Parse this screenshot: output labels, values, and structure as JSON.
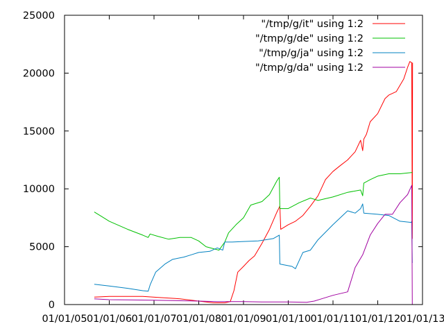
{
  "chart_data": {
    "type": "line",
    "title": "",
    "xlabel": "",
    "ylabel": "",
    "x_type": "date",
    "x_format": "dd/mm/yy",
    "xlim": [
      "2005-01-01",
      "2013-01-01"
    ],
    "ylim": [
      0,
      25000
    ],
    "x_ticks": [
      "01/01/05",
      "01/01/06",
      "01/01/07",
      "01/01/08",
      "01/01/09",
      "01/01/10",
      "01/01/11",
      "01/01/12",
      "01/01/13"
    ],
    "y_ticks": [
      0,
      5000,
      10000,
      15000,
      20000,
      25000
    ],
    "grid": false,
    "legend_position": "top-right",
    "series": [
      {
        "name": "\"/tmp/g/it\" using 1:2",
        "color": "#ff0000",
        "points": [
          [
            "2005-09-01",
            650
          ],
          [
            "2006-01-01",
            700
          ],
          [
            "2006-06-01",
            700
          ],
          [
            "2006-10-01",
            700
          ],
          [
            "2007-03-01",
            600
          ],
          [
            "2007-08-01",
            500
          ],
          [
            "2008-01-01",
            300
          ],
          [
            "2008-05-01",
            150
          ],
          [
            "2008-08-01",
            150
          ],
          [
            "2008-09-15",
            250
          ],
          [
            "2008-10-15",
            1200
          ],
          [
            "2008-11-15",
            2800
          ],
          [
            "2009-01-01",
            3300
          ],
          [
            "2009-02-15",
            3800
          ],
          [
            "2009-04-01",
            4200
          ],
          [
            "2009-06-01",
            5300
          ],
          [
            "2009-08-01",
            6500
          ],
          [
            "2009-10-01",
            8000
          ],
          [
            "2009-10-25",
            8500
          ],
          [
            "2009-11-01",
            6500
          ],
          [
            "2010-01-01",
            6900
          ],
          [
            "2010-03-01",
            7200
          ],
          [
            "2010-05-01",
            7700
          ],
          [
            "2010-07-01",
            8500
          ],
          [
            "2010-09-01",
            9400
          ],
          [
            "2010-11-01",
            10800
          ],
          [
            "2011-01-01",
            11500
          ],
          [
            "2011-03-01",
            12000
          ],
          [
            "2011-05-01",
            12500
          ],
          [
            "2011-07-01",
            13200
          ],
          [
            "2011-08-15",
            14200
          ],
          [
            "2011-09-01",
            13300
          ],
          [
            "2011-09-10",
            14300
          ],
          [
            "2011-10-01",
            14700
          ],
          [
            "2011-11-01",
            15800
          ],
          [
            "2012-01-01",
            16500
          ],
          [
            "2012-03-01",
            17800
          ],
          [
            "2012-04-01",
            18100
          ],
          [
            "2012-06-01",
            18400
          ],
          [
            "2012-08-01",
            19500
          ],
          [
            "2012-09-01",
            20500
          ],
          [
            "2012-09-20",
            21000
          ],
          [
            "2012-10-05",
            20900
          ],
          [
            "2012-10-10",
            5700
          ],
          [
            "2012-10-12",
            20900
          ]
        ]
      },
      {
        "name": "\"/tmp/g/de\" using 1:2",
        "color": "#00c000",
        "points": [
          [
            "2005-09-01",
            8000
          ],
          [
            "2005-11-01",
            7600
          ],
          [
            "2006-01-01",
            7200
          ],
          [
            "2006-06-01",
            6500
          ],
          [
            "2006-10-01",
            6000
          ],
          [
            "2006-11-15",
            5800
          ],
          [
            "2006-12-01",
            6100
          ],
          [
            "2007-02-01",
            5900
          ],
          [
            "2007-05-01",
            5650
          ],
          [
            "2007-08-01",
            5800
          ],
          [
            "2007-11-01",
            5800
          ],
          [
            "2008-01-01",
            5500
          ],
          [
            "2008-03-01",
            5000
          ],
          [
            "2008-06-15",
            4700
          ],
          [
            "2008-08-01",
            5400
          ],
          [
            "2008-09-01",
            6200
          ],
          [
            "2008-11-01",
            6900
          ],
          [
            "2009-01-01",
            7500
          ],
          [
            "2009-03-01",
            8600
          ],
          [
            "2009-06-01",
            8900
          ],
          [
            "2009-08-01",
            9500
          ],
          [
            "2009-10-01",
            10700
          ],
          [
            "2009-10-20",
            11000
          ],
          [
            "2009-10-25",
            8300
          ],
          [
            "2010-01-01",
            8300
          ],
          [
            "2010-04-01",
            8800
          ],
          [
            "2010-07-01",
            9200
          ],
          [
            "2010-09-01",
            9000
          ],
          [
            "2011-01-01",
            9300
          ],
          [
            "2011-05-01",
            9700
          ],
          [
            "2011-08-15",
            9900
          ],
          [
            "2011-09-01",
            9400
          ],
          [
            "2011-09-10",
            10500
          ],
          [
            "2011-11-01",
            10800
          ],
          [
            "2012-01-01",
            11100
          ],
          [
            "2012-04-01",
            11300
          ],
          [
            "2012-07-01",
            11300
          ],
          [
            "2012-10-01",
            11400
          ],
          [
            "2012-10-10",
            11400
          ]
        ]
      },
      {
        "name": "\"/tmp/g/ja\" using 1:2",
        "color": "#0080c0",
        "points": [
          [
            "2005-09-01",
            1750
          ],
          [
            "2006-01-01",
            1600
          ],
          [
            "2006-06-01",
            1400
          ],
          [
            "2006-10-01",
            1200
          ],
          [
            "2006-11-15",
            1150
          ],
          [
            "2006-12-01",
            1700
          ],
          [
            "2007-01-15",
            2800
          ],
          [
            "2007-04-01",
            3500
          ],
          [
            "2007-06-01",
            3900
          ],
          [
            "2007-09-01",
            4100
          ],
          [
            "2007-11-01",
            4300
          ],
          [
            "2008-01-01",
            4500
          ],
          [
            "2008-04-01",
            4600
          ],
          [
            "2008-06-01",
            4900
          ],
          [
            "2008-07-15",
            4700
          ],
          [
            "2008-08-01",
            5400
          ],
          [
            "2008-10-01",
            5400
          ],
          [
            "2009-01-01",
            5450
          ],
          [
            "2009-05-01",
            5500
          ],
          [
            "2009-07-01",
            5600
          ],
          [
            "2009-09-01",
            5700
          ],
          [
            "2009-10-20",
            6000
          ],
          [
            "2009-10-25",
            3500
          ],
          [
            "2010-02-01",
            3300
          ],
          [
            "2010-03-01",
            3100
          ],
          [
            "2010-05-01",
            4500
          ],
          [
            "2010-07-01",
            4700
          ],
          [
            "2010-09-01",
            5600
          ],
          [
            "2011-01-01",
            6900
          ],
          [
            "2011-05-01",
            8100
          ],
          [
            "2011-07-01",
            7900
          ],
          [
            "2011-08-15",
            8300
          ],
          [
            "2011-09-01",
            8700
          ],
          [
            "2011-09-10",
            7900
          ],
          [
            "2012-01-01",
            7800
          ],
          [
            "2012-04-01",
            7700
          ],
          [
            "2012-07-01",
            7200
          ],
          [
            "2012-10-01",
            7100
          ],
          [
            "2012-10-05",
            7200
          ],
          [
            "2012-10-10",
            3600
          ]
        ]
      },
      {
        "name": "\"/tmp/g/da\" using 1:2",
        "color": "#a000a0",
        "points": [
          [
            "2005-09-01",
            500
          ],
          [
            "2006-01-01",
            420
          ],
          [
            "2006-06-01",
            400
          ],
          [
            "2007-01-01",
            380
          ],
          [
            "2007-06-01",
            350
          ],
          [
            "2008-01-01",
            300
          ],
          [
            "2008-06-01",
            250
          ],
          [
            "2009-01-01",
            250
          ],
          [
            "2009-06-01",
            230
          ],
          [
            "2010-01-01",
            220
          ],
          [
            "2010-06-01",
            200
          ],
          [
            "2010-08-01",
            300
          ],
          [
            "2010-10-01",
            500
          ],
          [
            "2011-01-01",
            800
          ],
          [
            "2011-05-01",
            1100
          ],
          [
            "2011-07-01",
            3200
          ],
          [
            "2011-09-01",
            4300
          ],
          [
            "2011-11-01",
            6000
          ],
          [
            "2012-01-01",
            7000
          ],
          [
            "2012-03-01",
            7800
          ],
          [
            "2012-05-01",
            7800
          ],
          [
            "2012-07-01",
            8800
          ],
          [
            "2012-09-01",
            9500
          ],
          [
            "2012-10-05",
            10300
          ],
          [
            "2012-10-10",
            0
          ]
        ]
      }
    ]
  }
}
